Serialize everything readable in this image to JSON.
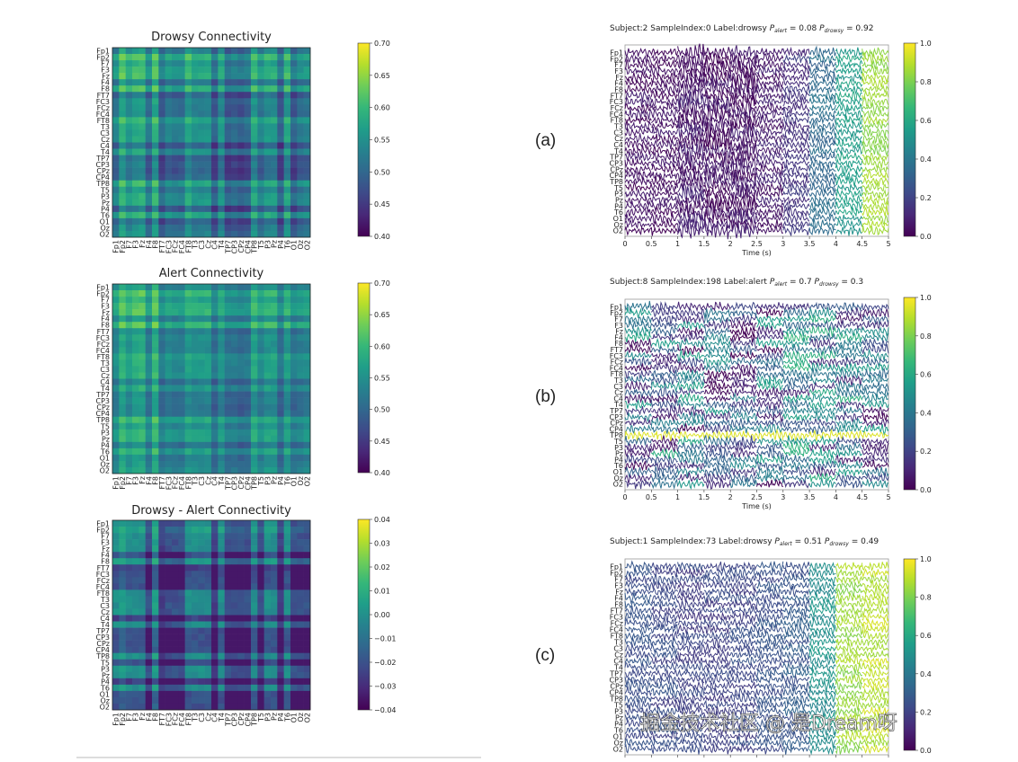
{
  "channels": [
    "Fp1",
    "Fp2",
    "F7",
    "F3",
    "Fz",
    "F4",
    "F8",
    "FT7",
    "FC3",
    "FCz",
    "FC4",
    "FT8",
    "T3",
    "C3",
    "Cz",
    "C4",
    "T4",
    "TP7",
    "CP3",
    "CPz",
    "CP4",
    "TP8",
    "T5",
    "P3",
    "Pz",
    "P4",
    "T6",
    "O1",
    "Oz",
    "O2"
  ],
  "panel_labels": [
    "(a)",
    "(b)",
    "(c)"
  ],
  "watermark": "掘金技术社区 @ 是Dream呀",
  "chart_data": [
    {
      "type": "heatmap",
      "title": "Drowsy Connectivity",
      "colormap": "viridis",
      "clim": [
        0.4,
        0.7
      ],
      "colorbar_ticks": [
        "0.70",
        "0.65",
        "0.60",
        "0.55",
        "0.50",
        "0.45",
        "0.40"
      ],
      "channel_strength": [
        0.52,
        0.64,
        0.57,
        0.61,
        0.62,
        0.5,
        0.63,
        0.46,
        0.52,
        0.5,
        0.5,
        0.6,
        0.55,
        0.55,
        0.56,
        0.44,
        0.56,
        0.44,
        0.46,
        0.44,
        0.46,
        0.6,
        0.52,
        0.57,
        0.57,
        0.44,
        0.6,
        0.45,
        0.5,
        0.52
      ]
    },
    {
      "type": "heatmap",
      "title": "Alert Connectivity",
      "colormap": "viridis",
      "clim": [
        0.4,
        0.7
      ],
      "colorbar_ticks": [
        "0.70",
        "0.65",
        "0.60",
        "0.55",
        "0.50",
        "0.45",
        "0.40"
      ],
      "channel_strength": [
        0.54,
        0.63,
        0.58,
        0.62,
        0.63,
        0.52,
        0.64,
        0.5,
        0.54,
        0.52,
        0.52,
        0.58,
        0.56,
        0.56,
        0.57,
        0.48,
        0.56,
        0.49,
        0.5,
        0.48,
        0.49,
        0.6,
        0.54,
        0.58,
        0.58,
        0.48,
        0.58,
        0.5,
        0.52,
        0.54
      ]
    },
    {
      "type": "heatmap",
      "title": "Drowsy - Alert Connectivity",
      "colormap": "viridis",
      "clim": [
        -0.04,
        0.04
      ],
      "colorbar_ticks": [
        "0.04",
        "0.03",
        "0.02",
        "0.01",
        "0.00",
        "−0.01",
        "−0.02",
        "−0.03",
        "−0.04"
      ],
      "channel_strength": [
        0.0,
        0.005,
        0.0,
        0.0,
        0.0,
        -0.02,
        0.005,
        -0.025,
        -0.02,
        -0.02,
        -0.02,
        0.0,
        0.0,
        0.0,
        0.0,
        -0.025,
        0.0,
        -0.02,
        -0.02,
        -0.02,
        -0.02,
        0.0,
        -0.02,
        0.0,
        0.0,
        -0.025,
        0.0,
        -0.02,
        -0.02,
        -0.02
      ]
    },
    {
      "type": "line",
      "subject": "Subject:2",
      "sample": "SampleIndex:0",
      "label": "Label:drowsy",
      "p_alert_value": "= 0.08",
      "p_drowsy_value": "= 0.92",
      "p_alert_sub": "alert",
      "p_drowsy_sub": "drowsy",
      "xlabel": "Time (s)",
      "xlim": [
        0,
        5
      ],
      "xticks": [
        "0",
        "0.5",
        "1",
        "1.5",
        "2",
        "2.5",
        "3",
        "3.5",
        "4",
        "4.5",
        "5"
      ],
      "colorbar_ticks": [
        "1.0",
        "0.8",
        "0.6",
        "0.4",
        "0.2",
        "0.0"
      ],
      "segment_importance": [
        0.05,
        0.05,
        0.08,
        0.05,
        0.06,
        0.08,
        0.15,
        0.35,
        0.55,
        0.85,
        0.55
      ]
    },
    {
      "type": "line",
      "subject": "Subject:8",
      "sample": "SampleIndex:198",
      "label": "Label:alert",
      "p_alert_value": "= 0.7",
      "p_drowsy_value": "= 0.3",
      "p_alert_sub": "alert",
      "p_drowsy_sub": "drowsy",
      "xlabel": "Time (s)",
      "xlim": [
        0,
        5
      ],
      "xticks": [
        "0",
        "0.5",
        "1",
        "1.5",
        "2",
        "2.5",
        "3",
        "3.5",
        "4",
        "4.5",
        "5"
      ],
      "colorbar_ticks": [
        "1.0",
        "0.8",
        "0.6",
        "0.4",
        "0.2",
        "0.0"
      ],
      "segment_importance": [
        0.3,
        0.35,
        0.3,
        0.25,
        0.2,
        0.3,
        0.4,
        0.35,
        0.35,
        0.3,
        0.3
      ]
    },
    {
      "type": "line",
      "subject": "Subject:1",
      "sample": "SampleIndex:73",
      "label": "Label:drowsy",
      "p_alert_value": "= 0.51",
      "p_drowsy_value": "= 0.49",
      "p_alert_sub": "alert",
      "p_drowsy_sub": "drowsy",
      "xlabel": "Time (s)",
      "xlim": [
        0,
        5
      ],
      "xticks": [
        "0",
        "0.5",
        "1",
        "1.5",
        "2",
        "2.5",
        "3",
        "3.5",
        "4",
        "4.5",
        "5"
      ],
      "colorbar_ticks": [
        "1.0",
        "0.8",
        "0.6",
        "0.4",
        "0.2",
        "0.0"
      ],
      "segment_importance": [
        0.25,
        0.22,
        0.2,
        0.2,
        0.22,
        0.25,
        0.28,
        0.5,
        0.85,
        0.9,
        0.9
      ]
    }
  ]
}
